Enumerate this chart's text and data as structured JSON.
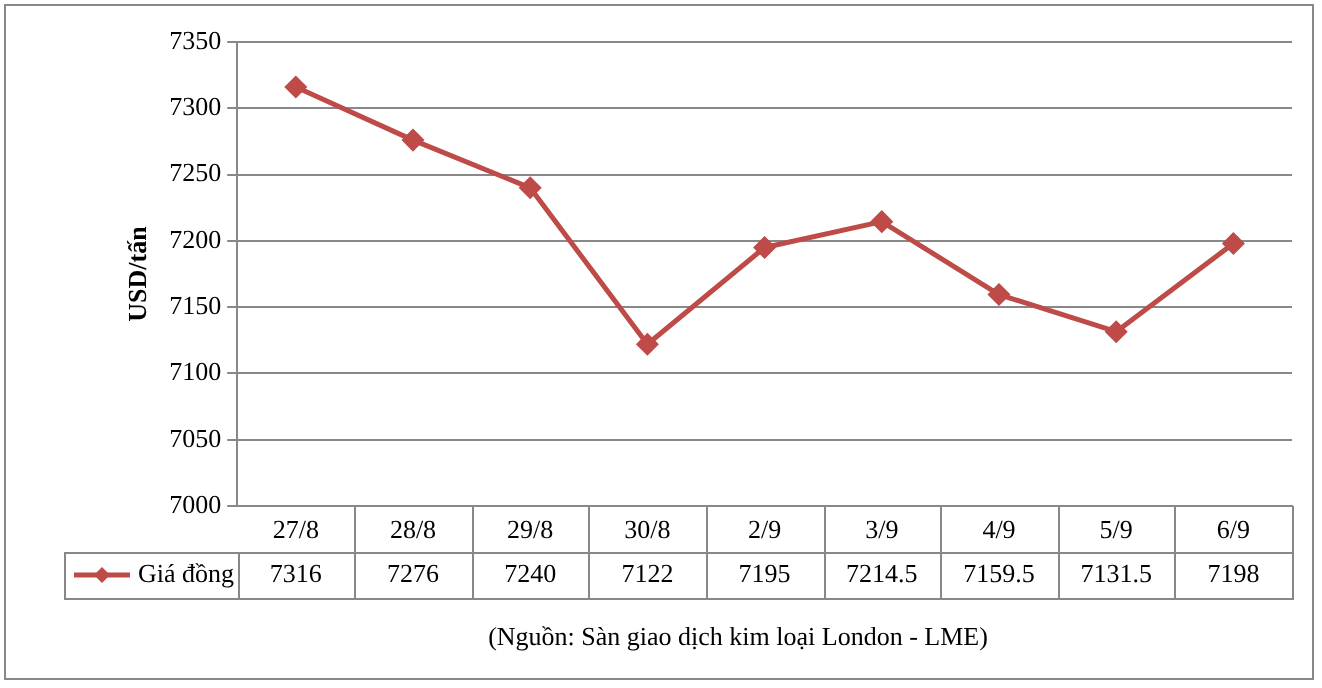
{
  "chart_data": {
    "type": "line",
    "ylabel": "USD/tấn",
    "categories": [
      "27/8",
      "28/8",
      "29/8",
      "30/8",
      "2/9",
      "3/9",
      "4/9",
      "5/9",
      "6/9"
    ],
    "series": [
      {
        "name": "Giá đồng",
        "color": "#be4b48",
        "values": [
          7316,
          7276,
          7240,
          7122,
          7195,
          7214.5,
          7159.5,
          7131.5,
          7198
        ]
      }
    ],
    "ylim": [
      7000,
      7350
    ],
    "yticks": [
      7000,
      7050,
      7100,
      7150,
      7200,
      7250,
      7300,
      7350
    ],
    "grid": "y",
    "legend": "bottom",
    "marker": "diamond",
    "line_style": "solid",
    "data_labels": true,
    "annotations": [
      "(Nguồn: Sàn giao dịch kim loại London - LME)"
    ]
  }
}
